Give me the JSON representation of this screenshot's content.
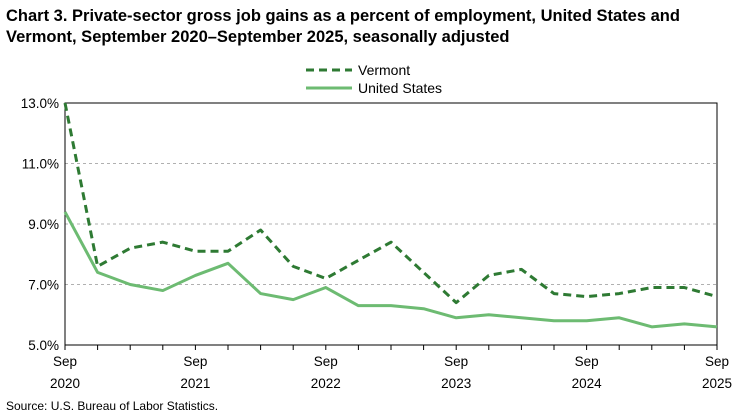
{
  "title": "Chart 3. Private-sector gross job gains as a percent of employment, United States and Vermont, September 2020–September 2025, seasonally adjusted",
  "source": "Source: U.S. Bureau of Labor Statistics.",
  "colors": {
    "vermont": "#2e7a33",
    "united_states": "#6dbb72",
    "grid": "#b0b0b0",
    "axis": "#000000"
  },
  "chart_data": {
    "type": "line",
    "title": "Chart 3. Private-sector gross job gains as a percent of employment, United States and Vermont, September 2020–September 2025, seasonally adjusted",
    "xlabel": "",
    "ylabel": "",
    "ylim": [
      5.0,
      13.0
    ],
    "yticks": [
      5.0,
      7.0,
      9.0,
      11.0,
      13.0
    ],
    "ytick_labels": [
      "5.0%",
      "7.0%",
      "9.0%",
      "11.0%",
      "13.0%"
    ],
    "x": [
      "Sep 2020",
      "Dec 2020",
      "Mar 2021",
      "Jun 2021",
      "Sep 2021",
      "Dec 2021",
      "Mar 2022",
      "Jun 2022",
      "Sep 2022",
      "Dec 2022",
      "Mar 2023",
      "Jun 2023",
      "Sep 2023",
      "Dec 2023",
      "Mar 2024",
      "Jun 2024",
      "Sep 2024",
      "Dec 2024",
      "Mar 2025",
      "Jun 2025",
      "Sep 2025"
    ],
    "xtick_labels": [
      {
        "month": "Sep",
        "year": "2020",
        "index": 0
      },
      {
        "month": "Sep",
        "year": "2021",
        "index": 4
      },
      {
        "month": "Sep",
        "year": "2022",
        "index": 8
      },
      {
        "month": "Sep",
        "year": "2023",
        "index": 12
      },
      {
        "month": "Sep",
        "year": "2024",
        "index": 16
      },
      {
        "month": "Sep",
        "year": "2025",
        "index": 20
      }
    ],
    "grid": "horizontal dashed",
    "legend_position": "top-center",
    "series": [
      {
        "name": "Vermont",
        "style": "dashed",
        "values": [
          13.0,
          7.6,
          8.2,
          8.4,
          8.1,
          8.1,
          8.8,
          7.6,
          7.2,
          7.8,
          8.4,
          7.4,
          6.4,
          7.3,
          7.5,
          6.7,
          6.6,
          6.7,
          6.9,
          6.9,
          6.6
        ]
      },
      {
        "name": "United States",
        "style": "solid",
        "values": [
          9.4,
          7.4,
          7.0,
          6.8,
          7.3,
          7.7,
          6.7,
          6.5,
          6.9,
          6.3,
          6.3,
          6.2,
          5.9,
          6.0,
          5.9,
          5.8,
          5.8,
          5.9,
          5.6,
          5.7,
          5.6
        ]
      }
    ]
  }
}
